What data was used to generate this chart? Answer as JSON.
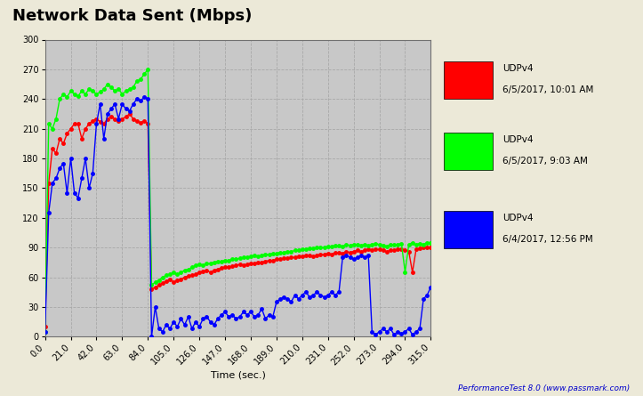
{
  "title": "Network Data Sent (Mbps)",
  "xlabel": "Time (sec.)",
  "ylabel": "",
  "footer": "PerformanceTest 8.0 (www.passmark.com)",
  "xlim": [
    0,
    315
  ],
  "ylim": [
    0,
    300
  ],
  "xticks": [
    0.0,
    21.0,
    42.0,
    63.0,
    84.0,
    105.0,
    126.0,
    147.0,
    168.0,
    189.0,
    210.0,
    231.0,
    252.0,
    273.0,
    294.0,
    315.0
  ],
  "yticks": [
    0,
    30,
    60,
    90,
    120,
    150,
    180,
    210,
    240,
    270,
    300
  ],
  "fig_bg": "#ECE9D8",
  "plot_bg": "#C8C8C8",
  "legend": [
    {
      "label": "UDPv4\n6/5/2017, 10:01 AM",
      "color": "#FF0000"
    },
    {
      "label": "UDPv4\n6/5/2017, 9:03 AM",
      "color": "#00FF00"
    },
    {
      "label": "UDPv4\n6/4/2017, 12:56 PM",
      "color": "#0000FF"
    }
  ],
  "red_x": [
    0,
    3,
    6,
    9,
    12,
    15,
    18,
    21,
    24,
    27,
    30,
    33,
    36,
    39,
    42,
    45,
    48,
    51,
    54,
    57,
    60,
    63,
    66,
    69,
    72,
    75,
    78,
    81,
    84,
    87,
    90,
    93,
    96,
    99,
    102,
    105,
    108,
    111,
    114,
    117,
    120,
    123,
    126,
    129,
    132,
    135,
    138,
    141,
    144,
    147,
    150,
    153,
    156,
    159,
    162,
    165,
    168,
    171,
    174,
    177,
    180,
    183,
    186,
    189,
    192,
    195,
    198,
    201,
    204,
    207,
    210,
    213,
    216,
    219,
    222,
    225,
    228,
    231,
    234,
    237,
    240,
    243,
    246,
    249,
    252,
    255,
    258,
    261,
    264,
    267,
    270,
    273,
    276,
    279,
    282,
    285,
    288,
    291,
    294,
    297,
    300,
    303,
    306,
    309,
    312,
    315
  ],
  "red_y": [
    10,
    155,
    190,
    185,
    200,
    195,
    205,
    210,
    215,
    215,
    200,
    210,
    215,
    218,
    220,
    217,
    215,
    220,
    222,
    220,
    218,
    220,
    222,
    225,
    220,
    218,
    216,
    218,
    215,
    48,
    50,
    52,
    54,
    56,
    58,
    55,
    57,
    58,
    60,
    61,
    62,
    63,
    65,
    66,
    67,
    65,
    67,
    68,
    69,
    70,
    70,
    71,
    72,
    73,
    72,
    73,
    74,
    74,
    75,
    75,
    76,
    77,
    77,
    78,
    78,
    79,
    79,
    80,
    80,
    81,
    81,
    82,
    82,
    81,
    82,
    83,
    83,
    84,
    83,
    85,
    85,
    84,
    86,
    85,
    86,
    87,
    86,
    87,
    88,
    87,
    88,
    88,
    87,
    86,
    87,
    87,
    88,
    88,
    87,
    86,
    65,
    88,
    89,
    90,
    90,
    90
  ],
  "green_x": [
    0,
    3,
    6,
    9,
    12,
    15,
    18,
    21,
    24,
    27,
    30,
    33,
    36,
    39,
    42,
    45,
    48,
    51,
    54,
    57,
    60,
    63,
    66,
    69,
    72,
    75,
    78,
    81,
    84,
    87,
    90,
    93,
    96,
    99,
    102,
    105,
    108,
    111,
    114,
    117,
    120,
    123,
    126,
    129,
    132,
    135,
    138,
    141,
    144,
    147,
    150,
    153,
    156,
    159,
    162,
    165,
    168,
    171,
    174,
    177,
    180,
    183,
    186,
    189,
    192,
    195,
    198,
    201,
    204,
    207,
    210,
    213,
    216,
    219,
    222,
    225,
    228,
    231,
    234,
    237,
    240,
    243,
    246,
    249,
    252,
    255,
    258,
    261,
    264,
    267,
    270,
    273,
    276,
    279,
    282,
    285,
    288,
    291,
    294,
    297,
    300,
    303,
    306,
    309,
    312,
    315
  ],
  "green_y": [
    5,
    215,
    210,
    220,
    240,
    245,
    242,
    248,
    245,
    243,
    248,
    245,
    250,
    248,
    245,
    247,
    250,
    255,
    252,
    248,
    250,
    245,
    248,
    250,
    252,
    258,
    260,
    265,
    270,
    52,
    55,
    57,
    60,
    62,
    63,
    65,
    63,
    65,
    67,
    68,
    70,
    72,
    73,
    72,
    74,
    74,
    75,
    76,
    76,
    77,
    77,
    78,
    78,
    79,
    80,
    80,
    81,
    82,
    81,
    82,
    83,
    83,
    84,
    84,
    85,
    85,
    86,
    86,
    87,
    87,
    88,
    88,
    89,
    89,
    90,
    90,
    90,
    91,
    91,
    92,
    92,
    91,
    93,
    92,
    93,
    93,
    92,
    93,
    92,
    93,
    94,
    93,
    92,
    91,
    93,
    93,
    93,
    94,
    65,
    93,
    95,
    93,
    94,
    93,
    95,
    95
  ],
  "blue_x": [
    0,
    3,
    6,
    9,
    12,
    15,
    18,
    21,
    24,
    27,
    30,
    33,
    36,
    39,
    42,
    45,
    48,
    51,
    54,
    57,
    60,
    63,
    66,
    69,
    72,
    75,
    78,
    81,
    84,
    87,
    90,
    93,
    96,
    99,
    102,
    105,
    108,
    111,
    114,
    117,
    120,
    123,
    126,
    129,
    132,
    135,
    138,
    141,
    144,
    147,
    150,
    153,
    156,
    159,
    162,
    165,
    168,
    171,
    174,
    177,
    180,
    183,
    186,
    189,
    192,
    195,
    198,
    201,
    204,
    207,
    210,
    213,
    216,
    219,
    222,
    225,
    228,
    231,
    234,
    237,
    240,
    243,
    246,
    249,
    252,
    255,
    258,
    261,
    264,
    267,
    270,
    273,
    276,
    279,
    282,
    285,
    288,
    291,
    294,
    297,
    300,
    303,
    306,
    309,
    312,
    315
  ],
  "blue_y": [
    5,
    125,
    155,
    160,
    170,
    175,
    145,
    180,
    145,
    140,
    160,
    180,
    150,
    165,
    215,
    235,
    200,
    225,
    230,
    235,
    220,
    235,
    230,
    228,
    235,
    240,
    238,
    242,
    240,
    0,
    30,
    8,
    5,
    12,
    8,
    15,
    10,
    18,
    12,
    20,
    8,
    15,
    10,
    18,
    20,
    15,
    12,
    18,
    22,
    25,
    20,
    22,
    18,
    20,
    25,
    22,
    25,
    20,
    22,
    28,
    18,
    22,
    20,
    35,
    38,
    40,
    38,
    35,
    42,
    38,
    42,
    45,
    40,
    42,
    45,
    42,
    40,
    42,
    45,
    42,
    45,
    80,
    82,
    80,
    78,
    80,
    82,
    80,
    82,
    5,
    2,
    5,
    8,
    5,
    8,
    2,
    5,
    3,
    5,
    8,
    2,
    5,
    8,
    38,
    42,
    50
  ]
}
